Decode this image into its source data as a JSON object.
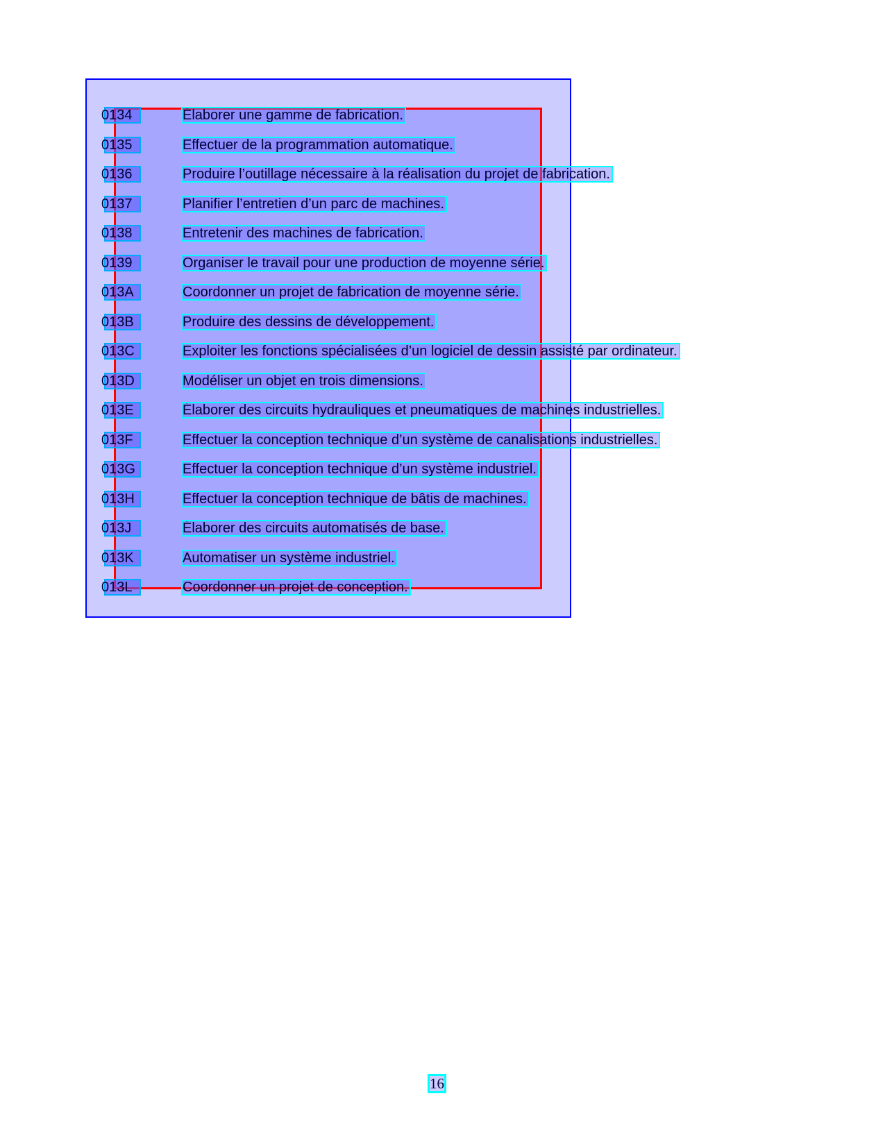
{
  "competencies": [
    {
      "code": "0134",
      "text": "Élaborer une gamme de fabrication."
    },
    {
      "code": "0135",
      "text": "Effectuer de la programmation automatique."
    },
    {
      "code": "0136",
      "text": "Produire l’outillage nécessaire à la réalisation du projet de fabrication."
    },
    {
      "code": "0137",
      "text": "Planifier l’entretien d’un parc de machines."
    },
    {
      "code": "0138",
      "text": "Entretenir des machines de fabrication."
    },
    {
      "code": "0139",
      "text": "Organiser le travail pour une production de moyenne série."
    },
    {
      "code": "013A",
      "text": "Coordonner un projet de fabrication de moyenne série."
    },
    {
      "code": "013B",
      "text": "Produire des dessins de développement."
    },
    {
      "code": "013C",
      "text": "Exploiter les fonctions spécialisées d’un logiciel de dessin assisté par ordinateur."
    },
    {
      "code": "013D",
      "text": "Modéliser un objet en trois dimensions."
    },
    {
      "code": "013E",
      "text": "Élaborer des circuits hydrauliques et pneumatiques de machines industrielles."
    },
    {
      "code": "013F",
      "text": "Effectuer la conception technique d’un système de canalisations industrielles."
    },
    {
      "code": "013G",
      "text": "Effectuer la conception technique d’un système industriel."
    },
    {
      "code": "013H",
      "text": "Effectuer la conception technique de bâtis de machines."
    },
    {
      "code": "013J",
      "text": "Élaborer des circuits automatisés de base."
    },
    {
      "code": "013K",
      "text": "Automatiser un système industriel."
    },
    {
      "code": "013L",
      "text": "Coordonner un projet de conception."
    }
  ],
  "page_number": "16",
  "colors": {
    "outer_box": "#ccccff",
    "outer_border": "#0000ff",
    "inner_border": "#ff0000",
    "line_outline": "#00ffff"
  }
}
